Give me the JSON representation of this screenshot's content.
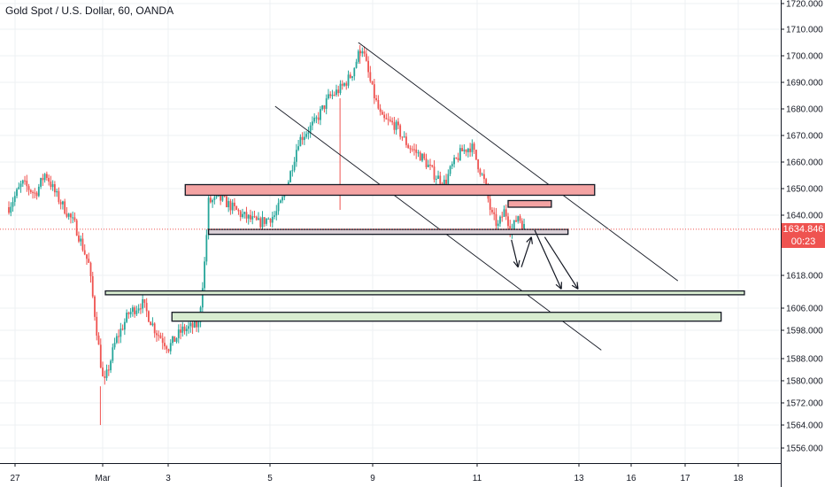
{
  "header": {
    "symbol_title": "Gold Spot / U.S. Dollar, 60, OANDA"
  },
  "price_axis": {
    "current_price": "1634.846",
    "countdown": "00:23",
    "partial_label": "16"
  },
  "colors": {
    "bull": "#26a69a",
    "bear": "#ef5350",
    "resistance_zone": "#f4a3a3",
    "support_zone_gray": "#d9cfd6",
    "demand_zone": "#d8ecd0",
    "last_price": "#ef5350",
    "grid": "#eef0f3"
  },
  "chart_data": {
    "type": "candlestick",
    "title": "Gold Spot / U.S. Dollar, 60, OANDA",
    "ylim": [
      1551,
      1723
    ],
    "y_ticks": [
      "1720.000",
      "1710.000",
      "1700.000",
      "1690.000",
      "1680.000",
      "1670.000",
      "1660.000",
      "1650.000",
      "1640.000",
      "1618.000",
      "1606.000",
      "1598.000",
      "1588.000",
      "1580.000",
      "1572.000",
      "1564.000",
      "1556.000"
    ],
    "x_ticks": [
      "27",
      "Mar",
      "3",
      "5",
      "9",
      "11",
      "13",
      "16",
      "17",
      "18"
    ],
    "grid": true,
    "last_price": 1634.846,
    "price_path": [
      {
        "t": 0.0,
        "p": 1643
      },
      {
        "t": 0.4,
        "p": 1652
      },
      {
        "t": 0.8,
        "p": 1648
      },
      {
        "t": 1.1,
        "p": 1656
      },
      {
        "t": 1.4,
        "p": 1648
      },
      {
        "t": 2.0,
        "p": 1636
      },
      {
        "t": 2.4,
        "p": 1622
      },
      {
        "t": 2.7,
        "p": 1592
      },
      {
        "t": 2.85,
        "p": 1578
      },
      {
        "t": 3.2,
        "p": 1594
      },
      {
        "t": 3.6,
        "p": 1604
      },
      {
        "t": 4.0,
        "p": 1608
      },
      {
        "t": 4.4,
        "p": 1598
      },
      {
        "t": 4.8,
        "p": 1592
      },
      {
        "t": 5.2,
        "p": 1598
      },
      {
        "t": 5.7,
        "p": 1600
      },
      {
        "t": 5.9,
        "p": 1625
      },
      {
        "t": 6.0,
        "p": 1645
      },
      {
        "t": 6.4,
        "p": 1646
      },
      {
        "t": 7.0,
        "p": 1640
      },
      {
        "t": 7.5,
        "p": 1637
      },
      {
        "t": 8.0,
        "p": 1640
      },
      {
        "t": 8.3,
        "p": 1648
      },
      {
        "t": 8.7,
        "p": 1668
      },
      {
        "t": 9.2,
        "p": 1675
      },
      {
        "t": 9.6,
        "p": 1684
      },
      {
        "t": 10.0,
        "p": 1688
      },
      {
        "t": 10.3,
        "p": 1693
      },
      {
        "t": 10.6,
        "p": 1704
      },
      {
        "t": 10.9,
        "p": 1688
      },
      {
        "t": 11.2,
        "p": 1676
      },
      {
        "t": 11.6,
        "p": 1674
      },
      {
        "t": 12.0,
        "p": 1666
      },
      {
        "t": 12.4,
        "p": 1662
      },
      {
        "t": 12.8,
        "p": 1655
      },
      {
        "t": 13.1,
        "p": 1652
      },
      {
        "t": 13.3,
        "p": 1658
      },
      {
        "t": 13.6,
        "p": 1664
      },
      {
        "t": 13.9,
        "p": 1666
      },
      {
        "t": 14.3,
        "p": 1652
      },
      {
        "t": 14.5,
        "p": 1640
      },
      {
        "t": 14.7,
        "p": 1636
      },
      {
        "t": 14.9,
        "p": 1642
      },
      {
        "t": 15.1,
        "p": 1634
      },
      {
        "t": 15.3,
        "p": 1640
      },
      {
        "t": 15.5,
        "p": 1635
      }
    ],
    "annotations": {
      "channel_lines": [
        {
          "from": {
            "t": 10.5,
            "p": 1705
          },
          "to": {
            "t": 20.1,
            "p": 1616
          }
        },
        {
          "from": {
            "t": 8.0,
            "p": 1681
          },
          "to": {
            "t": 17.8,
            "p": 1591
          }
        }
      ],
      "zones": [
        {
          "name": "resistance",
          "t": [
            5.3,
            17.6
          ],
          "p": [
            1651.5,
            1647.5
          ],
          "fill": "#f4a3a3"
        },
        {
          "name": "minor-resistance",
          "t": [
            15.0,
            16.3
          ],
          "p": [
            1645.5,
            1643.0
          ],
          "fill": "#f4a3a3"
        },
        {
          "name": "support",
          "t": [
            6.0,
            16.8
          ],
          "p": [
            1634.8,
            1633.0
          ],
          "fill": "#d9cfd6"
        },
        {
          "name": "demand-upper",
          "t": [
            2.9,
            22.1
          ],
          "p": [
            1612.3,
            1610.9
          ],
          "fill": "#d8ecd0"
        },
        {
          "name": "demand-lower",
          "t": [
            4.9,
            21.4
          ],
          "p": [
            1604.5,
            1601.3
          ],
          "fill": "#d8ecd0"
        }
      ],
      "arrows": [
        {
          "from": {
            "t": 15.1,
            "p": 1631
          },
          "to": {
            "t": 15.3,
            "p": 1621
          }
        },
        {
          "from": {
            "t": 15.4,
            "p": 1621
          },
          "to": {
            "t": 15.7,
            "p": 1632
          }
        },
        {
          "from": {
            "t": 15.8,
            "p": 1634.5
          },
          "to": {
            "t": 16.6,
            "p": 1613
          }
        },
        {
          "from": {
            "t": 16.1,
            "p": 1632
          },
          "to": {
            "t": 17.1,
            "p": 1613
          }
        }
      ]
    }
  }
}
